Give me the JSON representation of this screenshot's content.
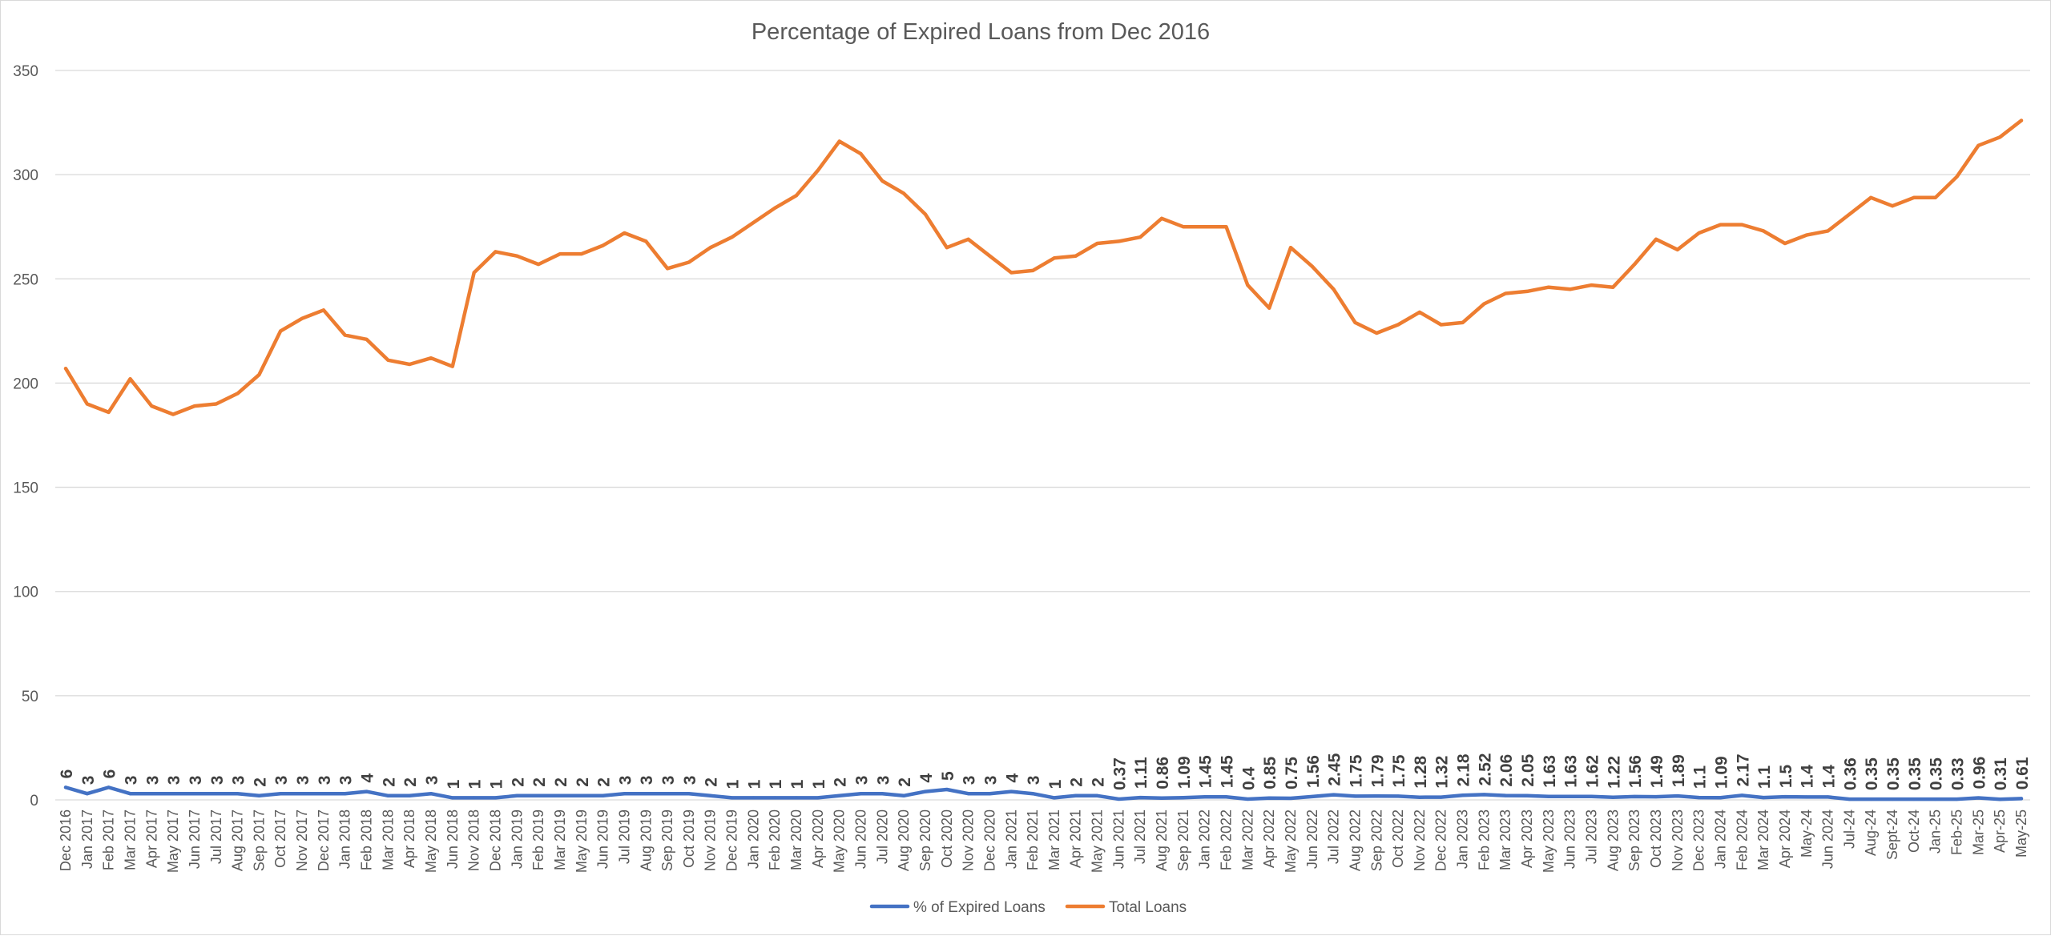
{
  "chart_data": {
    "type": "line",
    "title": "Percentage of Expired Loans from Dec 2016",
    "xlabel": "",
    "ylabel": "",
    "ylim": [
      0,
      350
    ],
    "yticks": [
      0,
      50,
      100,
      150,
      200,
      250,
      300,
      350
    ],
    "grid": "horizontal",
    "legend_position": "bottom",
    "categories": [
      "Dec 2016",
      "Jan 2017",
      "Feb 2017",
      "Mar 2017",
      "Apr 2017",
      "May 2017",
      "Jun 2017",
      "Jul 2017",
      "Aug 2017",
      "Sep 2017",
      "Oct 2017",
      "Nov 2017",
      "Dec 2017",
      "Jan 2018",
      "Feb 2018",
      "Mar 2018",
      "Apr 2018",
      "May 2018",
      "Jun 2018",
      "Nov 2018",
      "Dec 2018",
      "Jan 2019",
      "Feb 2019",
      "Mar 2019",
      "May 2019",
      "Jun 2019",
      "Jul 2019",
      "Aug 2019",
      "Sep 2019",
      "Oct 2019",
      "Nov 2019",
      "Dec 2019",
      "Jan 2020",
      "Feb 2020",
      "Mar 2020",
      "Apr 2020",
      "May 2020",
      "Jun 2020",
      "Jul 2020",
      "Aug 2020",
      "Sep 2020",
      "Oct 2020",
      "Nov 2020",
      "Dec 2020",
      "Jan 2021",
      "Feb 2021",
      "Mar 2021",
      "Apr 2021",
      "May 2021",
      "Jun 2021",
      "Jul 2021",
      "Aug 2021",
      "Sep 2021",
      "Jan 2022",
      "Feb 2022",
      "Mar 2022",
      "Apr 2022",
      "May 2022",
      "Jun 2022",
      "Jul 2022",
      "Aug 2022",
      "Sep 2022",
      "Oct 2022",
      "Nov 2022",
      "Dec 2022",
      "Jan 2023",
      "Feb 2023",
      "Mar 2023",
      "Apr 2023",
      "May 2023",
      "Jun 2023",
      "Jul 2023",
      "Aug 2023",
      "Sep 2023",
      "Oct 2023",
      "Nov 2023",
      "Dec 2023",
      "Jan 2024",
      "Feb 2024",
      "Mar 2024",
      "Apr 2024",
      "May-24",
      "Jun 2024",
      "Jul-24",
      "Aug-24",
      "Sept-24",
      "Oct-24",
      "Jan-25",
      "Feb-25",
      "Mar-25",
      "Apr-25",
      "May-25"
    ],
    "series": [
      {
        "name": "% of Expired Loans",
        "color": "#4472c4",
        "values": [
          6,
          3,
          6,
          3,
          3,
          3,
          3,
          3,
          3,
          2,
          3,
          3,
          3,
          3,
          4,
          2,
          2,
          3,
          1,
          1,
          1,
          2,
          2,
          2,
          2,
          2,
          3,
          3,
          3,
          3,
          2,
          1,
          1,
          1,
          1,
          1,
          2,
          3,
          3,
          2,
          4,
          5,
          3,
          3,
          4,
          3,
          1,
          2,
          2,
          0.37,
          1.11,
          0.86,
          1.09,
          1.45,
          1.45,
          0.4,
          0.85,
          0.75,
          1.56,
          2.45,
          1.75,
          1.79,
          1.75,
          1.28,
          1.32,
          2.18,
          2.52,
          2.06,
          2.05,
          1.63,
          1.63,
          1.62,
          1.22,
          1.56,
          1.49,
          1.89,
          1.1,
          1.09,
          2.17,
          1.1,
          1.5,
          1.4,
          1.4,
          0.36,
          0.35,
          0.35,
          0.35,
          0.35,
          0.33,
          0.96,
          0.31,
          0.61
        ],
        "labels": [
          "6",
          "3",
          "6",
          "3",
          "3",
          "3",
          "3",
          "3",
          "3",
          "2",
          "3",
          "3",
          "3",
          "3",
          "4",
          "2",
          "2",
          "3",
          "1",
          "1",
          "1",
          "2",
          "2",
          "2",
          "2",
          "2",
          "3",
          "3",
          "3",
          "3",
          "2",
          "1",
          "1",
          "1",
          "1",
          "1",
          "2",
          "3",
          "3",
          "2",
          "4",
          "5",
          "3",
          "3",
          "4",
          "3",
          "1",
          "2",
          "2",
          "0.37",
          "1.11",
          "0.86",
          "1.09",
          "1.45",
          "1.45",
          "0.4",
          "0.85",
          "0.75",
          "1.56",
          "2.45",
          "1.75",
          "1.79",
          "1.75",
          "1.28",
          "1.32",
          "2.18",
          "2.52",
          "2.06",
          "2.05",
          "1.63",
          "1.63",
          "1.62",
          "1.22",
          "1.56",
          "1.49",
          "1.89",
          "1.1",
          "1.09",
          "2.17",
          "1.1",
          "1.5",
          "1.4",
          "1.4",
          "0.36",
          "0.35",
          "0.35",
          "0.35",
          "0.35",
          "0.33",
          "0.96",
          "0.31",
          "0.61"
        ]
      },
      {
        "name": "Total Loans",
        "color": "#ed7d31",
        "values": [
          207,
          190,
          186,
          202,
          189,
          185,
          189,
          190,
          195,
          204,
          225,
          231,
          235,
          223,
          221,
          211,
          209,
          212,
          208,
          253,
          263,
          261,
          257,
          262,
          262,
          266,
          272,
          268,
          255,
          258,
          265,
          270,
          277,
          284,
          290,
          302,
          316,
          310,
          297,
          291,
          281,
          265,
          269,
          261,
          253,
          254,
          260,
          261,
          267,
          268,
          270,
          279,
          275,
          275,
          275,
          247,
          236,
          265,
          256,
          245,
          229,
          224,
          228,
          234,
          228,
          229,
          238,
          243,
          244,
          246,
          245,
          247,
          246,
          257,
          269,
          264,
          272,
          276,
          276,
          273,
          267,
          271,
          273,
          281,
          289,
          285,
          289,
          289,
          299,
          314,
          318,
          326
        ]
      }
    ]
  }
}
